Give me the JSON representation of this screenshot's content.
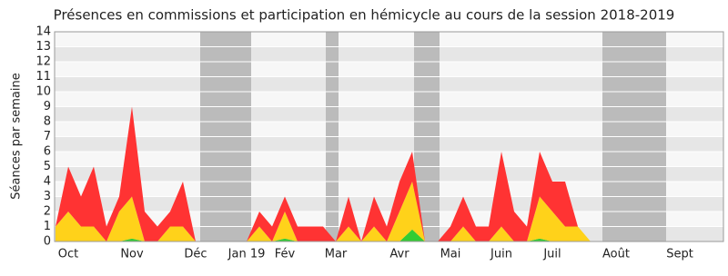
{
  "chart_data": {
    "type": "stacked_area",
    "title": "Présences en commissions et participation en hémicycle au cours de la session 2018-2019",
    "y_label": "Séances par semaine",
    "categories": [
      null,
      "Oct",
      null,
      null,
      null,
      null,
      "Nov",
      null,
      null,
      null,
      null,
      "Déc",
      null,
      null,
      null,
      "Jan 19",
      null,
      null,
      "Fév",
      null,
      null,
      null,
      "Mar",
      null,
      null,
      null,
      null,
      "Avr",
      null,
      null,
      null,
      "Mai",
      null,
      null,
      null,
      "Juin",
      null,
      null,
      null,
      "Juil",
      null,
      null,
      null,
      null,
      "Août",
      null,
      null,
      null,
      null,
      "Sept",
      null,
      null,
      null
    ],
    "series": [
      {
        "color": "#33cc33",
        "values": [
          0,
          0,
          0,
          0,
          0,
          0,
          0.2,
          0,
          0,
          0,
          0,
          0,
          0,
          0,
          0,
          0,
          0,
          0,
          0.2,
          0,
          0,
          0,
          0,
          0,
          0,
          0,
          0,
          0,
          0.8,
          0,
          0,
          0,
          0,
          0,
          0,
          0,
          0,
          0,
          0.2,
          0,
          0,
          0,
          0,
          0,
          0,
          0,
          0,
          0,
          0,
          0,
          0,
          0,
          0
        ]
      },
      {
        "color": "#ffd21a",
        "values": [
          1,
          2,
          1,
          1,
          0,
          2,
          2.8,
          0,
          0,
          1,
          1,
          0,
          0,
          0,
          0,
          0,
          1,
          0,
          1.8,
          0,
          0,
          0,
          0,
          1,
          0,
          1,
          0,
          2,
          3.2,
          0,
          0,
          0,
          1,
          0,
          0,
          1,
          0,
          0,
          2.8,
          2,
          1,
          1,
          0,
          0,
          0,
          0,
          0,
          0,
          0,
          0,
          0,
          0,
          0
        ]
      },
      {
        "color": "#ff3333",
        "values": [
          0,
          3,
          2,
          4,
          1,
          1,
          6,
          2,
          1,
          1,
          3,
          0,
          0,
          0,
          0,
          0,
          1,
          1,
          1,
          1,
          1,
          1,
          0,
          2,
          0,
          2,
          1,
          2,
          2,
          0,
          0,
          1,
          2,
          1,
          1,
          5,
          2,
          1,
          3,
          2,
          3,
          0,
          0,
          0,
          0,
          0,
          0,
          0,
          0,
          0,
          0,
          0,
          0
        ]
      }
    ],
    "ylim": [
      0,
      14
    ],
    "yticks": [
      0,
      1,
      2,
      3,
      4,
      5,
      6,
      7,
      8,
      9,
      10,
      11,
      12,
      13,
      14
    ],
    "grid": true
  }
}
